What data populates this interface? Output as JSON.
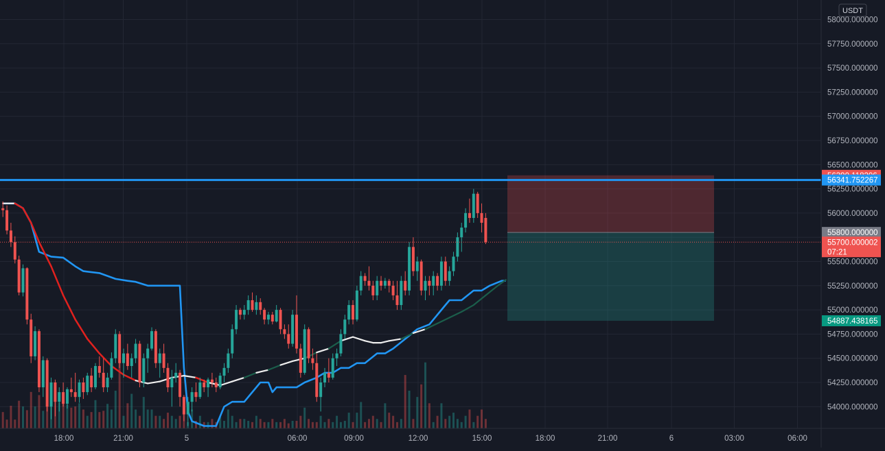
{
  "currency_label": "USDT",
  "colors": {
    "background": "#161a25",
    "grid": "#232734",
    "up": "#26a69a",
    "down": "#ef5350",
    "channel": "#2196f3",
    "ma_down": "#e0211e",
    "ma_neutral": "#eeeeee",
    "ma_up": "#1b5e4b",
    "axis_text": "#b2b5be",
    "stop_zone": "rgba(239,83,80,0.26)",
    "target_zone": "rgba(38,166,154,0.26)",
    "entry_marker": "#787b86"
  },
  "price_axis": {
    "ticks": [
      "58000.000000",
      "57750.000000",
      "57500.000000",
      "57250.000000",
      "57000.000000",
      "56750.000000",
      "56500.000000",
      "56250.000000",
      "56000.000000",
      "55750.000000",
      "55500.000000",
      "55250.000000",
      "55000.000000",
      "54750.000000",
      "54500.000000",
      "54250.000000",
      "54000.000000"
    ],
    "labels": [
      {
        "text": "56390.118206",
        "value": 56390.118206,
        "color": "#ef5350"
      },
      {
        "text": "56341.752267",
        "value": 56341.752267,
        "color": "#2196f3"
      },
      {
        "text": "55800.000000",
        "value": 55800.0,
        "color": "#787b86"
      },
      {
        "text": "55700.000002",
        "value": 55700.000002,
        "color": "#ef5350"
      },
      {
        "text": "54887.438165",
        "value": 54887.438165,
        "color": "#089981"
      }
    ],
    "countdown": "07:21"
  },
  "time_axis": {
    "ticks": [
      "18:00",
      "21:00",
      "5",
      "06:00",
      "09:00",
      "12:00",
      "15:00",
      "18:00",
      "21:00",
      "6",
      "03:00",
      "06:00"
    ]
  },
  "chart_data": {
    "type": "candlestick",
    "interval_minutes": 15,
    "first_bar_time": "4 15:30",
    "ylim": [
      53800,
      58100
    ],
    "horizontal_lines": [
      56341.752267
    ],
    "last_price": 55700.000002,
    "position": {
      "type": "short",
      "entry": 55800.0,
      "stop": 56390.118206,
      "target": 54887.438165
    },
    "candles": [
      {
        "o": 56050,
        "h": 56120,
        "l": 55960,
        "c": 56030
      },
      {
        "o": 56030,
        "h": 56080,
        "l": 55780,
        "c": 55820
      },
      {
        "o": 55820,
        "h": 55900,
        "l": 55650,
        "c": 55700
      },
      {
        "o": 55700,
        "h": 55760,
        "l": 55480,
        "c": 55520
      },
      {
        "o": 55520,
        "h": 55560,
        "l": 55150,
        "c": 55180
      },
      {
        "o": 55180,
        "h": 55470,
        "l": 55140,
        "c": 55430
      },
      {
        "o": 55430,
        "h": 55440,
        "l": 54850,
        "c": 54900
      },
      {
        "o": 54900,
        "h": 54960,
        "l": 54450,
        "c": 54520
      },
      {
        "o": 54520,
        "h": 54830,
        "l": 54480,
        "c": 54780
      },
      {
        "o": 54780,
        "h": 54800,
        "l": 54150,
        "c": 54200
      },
      {
        "o": 54200,
        "h": 54520,
        "l": 54100,
        "c": 54480
      },
      {
        "o": 54480,
        "h": 54500,
        "l": 53950,
        "c": 54000
      },
      {
        "o": 54000,
        "h": 54300,
        "l": 53870,
        "c": 54250
      },
      {
        "o": 54250,
        "h": 54280,
        "l": 53900,
        "c": 54050
      },
      {
        "o": 54050,
        "h": 54200,
        "l": 53950,
        "c": 54150
      },
      {
        "o": 54150,
        "h": 54250,
        "l": 54000,
        "c": 54030
      },
      {
        "o": 54030,
        "h": 54200,
        "l": 53980,
        "c": 54180
      },
      {
        "o": 54180,
        "h": 54300,
        "l": 54100,
        "c": 54150
      },
      {
        "o": 54150,
        "h": 54350,
        "l": 54050,
        "c": 54100
      },
      {
        "o": 54100,
        "h": 54280,
        "l": 54040,
        "c": 54250
      },
      {
        "o": 54250,
        "h": 54300,
        "l": 54080,
        "c": 54150
      },
      {
        "o": 54150,
        "h": 54350,
        "l": 54120,
        "c": 54320
      },
      {
        "o": 54320,
        "h": 54400,
        "l": 54150,
        "c": 54200
      },
      {
        "o": 54200,
        "h": 54450,
        "l": 54180,
        "c": 54420
      },
      {
        "o": 54420,
        "h": 54520,
        "l": 54300,
        "c": 54350
      },
      {
        "o": 54350,
        "h": 54500,
        "l": 54150,
        "c": 54200
      },
      {
        "o": 54200,
        "h": 54350,
        "l": 54150,
        "c": 54300
      },
      {
        "o": 54300,
        "h": 54560,
        "l": 54280,
        "c": 54500
      },
      {
        "o": 54500,
        "h": 54800,
        "l": 54450,
        "c": 54750
      },
      {
        "o": 54750,
        "h": 54780,
        "l": 54400,
        "c": 54450
      },
      {
        "o": 54450,
        "h": 54600,
        "l": 54300,
        "c": 54550
      },
      {
        "o": 54550,
        "h": 54650,
        "l": 54380,
        "c": 54420
      },
      {
        "o": 54420,
        "h": 54550,
        "l": 54300,
        "c": 54500
      },
      {
        "o": 54500,
        "h": 54700,
        "l": 54450,
        "c": 54650
      },
      {
        "o": 54650,
        "h": 54680,
        "l": 54200,
        "c": 54250
      },
      {
        "o": 54250,
        "h": 54550,
        "l": 54200,
        "c": 54500
      },
      {
        "o": 54500,
        "h": 54650,
        "l": 54350,
        "c": 54600
      },
      {
        "o": 54600,
        "h": 54820,
        "l": 54580,
        "c": 54780
      },
      {
        "o": 54780,
        "h": 54800,
        "l": 54400,
        "c": 54450
      },
      {
        "o": 54450,
        "h": 54600,
        "l": 54300,
        "c": 54550
      },
      {
        "o": 54550,
        "h": 54650,
        "l": 54350,
        "c": 54400
      },
      {
        "o": 54400,
        "h": 54450,
        "l": 54150,
        "c": 54200
      },
      {
        "o": 54200,
        "h": 54380,
        "l": 54000,
        "c": 54300
      },
      {
        "o": 54300,
        "h": 54450,
        "l": 54250,
        "c": 54350
      },
      {
        "o": 54350,
        "h": 54380,
        "l": 54000,
        "c": 54100
      },
      {
        "o": 54100,
        "h": 54120,
        "l": 53850,
        "c": 53920
      },
      {
        "o": 53920,
        "h": 54100,
        "l": 53800,
        "c": 54050
      },
      {
        "o": 54050,
        "h": 54200,
        "l": 53950,
        "c": 54150
      },
      {
        "o": 54150,
        "h": 54250,
        "l": 54050,
        "c": 54100
      },
      {
        "o": 54100,
        "h": 54300,
        "l": 54080,
        "c": 54250
      },
      {
        "o": 54250,
        "h": 54280,
        "l": 54150,
        "c": 54200
      },
      {
        "o": 54200,
        "h": 54300,
        "l": 54100,
        "c": 54280
      },
      {
        "o": 54280,
        "h": 54350,
        "l": 54200,
        "c": 54250
      },
      {
        "o": 54250,
        "h": 54300,
        "l": 54150,
        "c": 54200
      },
      {
        "o": 54200,
        "h": 54350,
        "l": 54180,
        "c": 54320
      },
      {
        "o": 54320,
        "h": 54450,
        "l": 54250,
        "c": 54400
      },
      {
        "o": 54400,
        "h": 54600,
        "l": 54350,
        "c": 54550
      },
      {
        "o": 54550,
        "h": 54850,
        "l": 54500,
        "c": 54800
      },
      {
        "o": 54800,
        "h": 55050,
        "l": 54750,
        "c": 55000
      },
      {
        "o": 55000,
        "h": 55020,
        "l": 54900,
        "c": 54950
      },
      {
        "o": 54950,
        "h": 55050,
        "l": 54900,
        "c": 55000
      },
      {
        "o": 55000,
        "h": 55150,
        "l": 54950,
        "c": 55100
      },
      {
        "o": 55100,
        "h": 55180,
        "l": 54980,
        "c": 55000
      },
      {
        "o": 55000,
        "h": 55150,
        "l": 54950,
        "c": 55080
      },
      {
        "o": 55080,
        "h": 55120,
        "l": 54950,
        "c": 55000
      },
      {
        "o": 55000,
        "h": 55020,
        "l": 54850,
        "c": 54900
      },
      {
        "o": 54900,
        "h": 54980,
        "l": 54850,
        "c": 54950
      },
      {
        "o": 54950,
        "h": 54980,
        "l": 54850,
        "c": 54880
      },
      {
        "o": 54880,
        "h": 55050,
        "l": 54870,
        "c": 55000
      },
      {
        "o": 55000,
        "h": 55020,
        "l": 54750,
        "c": 54800
      },
      {
        "o": 54800,
        "h": 54850,
        "l": 54700,
        "c": 54750
      },
      {
        "o": 54750,
        "h": 54850,
        "l": 54600,
        "c": 54650
      },
      {
        "o": 54650,
        "h": 55000,
        "l": 54620,
        "c": 54950
      },
      {
        "o": 54950,
        "h": 55150,
        "l": 54550,
        "c": 54600
      },
      {
        "o": 54600,
        "h": 54650,
        "l": 54300,
        "c": 54350
      },
      {
        "o": 54350,
        "h": 54850,
        "l": 54330,
        "c": 54800
      },
      {
        "o": 54800,
        "h": 54820,
        "l": 54450,
        "c": 54500
      },
      {
        "o": 54500,
        "h": 54600,
        "l": 54380,
        "c": 54450
      },
      {
        "o": 54450,
        "h": 54550,
        "l": 54050,
        "c": 54100
      },
      {
        "o": 54100,
        "h": 54300,
        "l": 53950,
        "c": 54250
      },
      {
        "o": 54250,
        "h": 54400,
        "l": 54200,
        "c": 54350
      },
      {
        "o": 54350,
        "h": 54500,
        "l": 54250,
        "c": 54300
      },
      {
        "o": 54300,
        "h": 54550,
        "l": 54280,
        "c": 54500
      },
      {
        "o": 54500,
        "h": 54600,
        "l": 54420,
        "c": 54550
      },
      {
        "o": 54550,
        "h": 54800,
        "l": 54520,
        "c": 54750
      },
      {
        "o": 54750,
        "h": 54950,
        "l": 54700,
        "c": 54900
      },
      {
        "o": 54900,
        "h": 55100,
        "l": 54850,
        "c": 55050
      },
      {
        "o": 55050,
        "h": 55100,
        "l": 54850,
        "c": 54900
      },
      {
        "o": 54900,
        "h": 55250,
        "l": 54880,
        "c": 55200
      },
      {
        "o": 55200,
        "h": 55400,
        "l": 55150,
        "c": 55350
      },
      {
        "o": 55350,
        "h": 55380,
        "l": 55250,
        "c": 55300
      },
      {
        "o": 55300,
        "h": 55450,
        "l": 55200,
        "c": 55250
      },
      {
        "o": 55250,
        "h": 55300,
        "l": 55100,
        "c": 55150
      },
      {
        "o": 55150,
        "h": 55350,
        "l": 55100,
        "c": 55300
      },
      {
        "o": 55300,
        "h": 55350,
        "l": 55200,
        "c": 55250
      },
      {
        "o": 55250,
        "h": 55330,
        "l": 55220,
        "c": 55300
      },
      {
        "o": 55300,
        "h": 55320,
        "l": 55180,
        "c": 55250
      },
      {
        "o": 55250,
        "h": 55300,
        "l": 55100,
        "c": 55150
      },
      {
        "o": 55150,
        "h": 55300,
        "l": 55000,
        "c": 55050
      },
      {
        "o": 55050,
        "h": 55350,
        "l": 55000,
        "c": 55300
      },
      {
        "o": 55300,
        "h": 55400,
        "l": 55150,
        "c": 55200
      },
      {
        "o": 55200,
        "h": 55700,
        "l": 55150,
        "c": 55650
      },
      {
        "o": 55650,
        "h": 55750,
        "l": 55350,
        "c": 55400
      },
      {
        "o": 55400,
        "h": 55550,
        "l": 55300,
        "c": 55500
      },
      {
        "o": 55500,
        "h": 55520,
        "l": 55150,
        "c": 55200
      },
      {
        "o": 55200,
        "h": 55350,
        "l": 55100,
        "c": 55300
      },
      {
        "o": 55300,
        "h": 55350,
        "l": 55150,
        "c": 55250
      },
      {
        "o": 55250,
        "h": 55400,
        "l": 55150,
        "c": 55350
      },
      {
        "o": 55350,
        "h": 55380,
        "l": 55200,
        "c": 55250
      },
      {
        "o": 55250,
        "h": 55550,
        "l": 55200,
        "c": 55500
      },
      {
        "o": 55500,
        "h": 55550,
        "l": 55250,
        "c": 55300
      },
      {
        "o": 55300,
        "h": 55450,
        "l": 55250,
        "c": 55400
      },
      {
        "o": 55400,
        "h": 55600,
        "l": 55350,
        "c": 55550
      },
      {
        "o": 55550,
        "h": 55800,
        "l": 55500,
        "c": 55750
      },
      {
        "o": 55750,
        "h": 55900,
        "l": 55600,
        "c": 55850
      },
      {
        "o": 55850,
        "h": 56050,
        "l": 55800,
        "c": 56000
      },
      {
        "o": 56000,
        "h": 56150,
        "l": 55900,
        "c": 55950
      },
      {
        "o": 55950,
        "h": 56250,
        "l": 55900,
        "c": 56200
      },
      {
        "o": 56200,
        "h": 56220,
        "l": 55950,
        "c": 56000
      },
      {
        "o": 56000,
        "h": 56100,
        "l": 55800,
        "c": 55900
      },
      {
        "o": 55950,
        "h": 56000,
        "l": 55680,
        "c": 55700
      }
    ],
    "volumes": [
      260,
      140,
      360,
      140,
      440,
      350,
      290,
      580,
      350,
      530,
      280,
      450,
      700,
      600,
      410,
      500,
      380,
      330,
      350,
      400,
      300,
      200,
      260,
      450,
      260,
      280,
      390,
      300,
      600,
      1100,
      200,
      400,
      550,
      300,
      200,
      500,
      300,
      300,
      200,
      200,
      150,
      250,
      200,
      150,
      200,
      250,
      100,
      300,
      120,
      200,
      100,
      100,
      150,
      100,
      200,
      120,
      300,
      200,
      100,
      150,
      150,
      120,
      100,
      200,
      150,
      100,
      100,
      150,
      100,
      100,
      150,
      80,
      120,
      120,
      200,
      330,
      150,
      100,
      100,
      200,
      100,
      150,
      100,
      200,
      100,
      120,
      250,
      100,
      250,
      420,
      100,
      150,
      200,
      150,
      100,
      400,
      250,
      200,
      100,
      150,
      850,
      600,
      150,
      500,
      700,
      1050,
      400,
      100,
      200,
      400,
      150,
      200,
      250,
      150,
      100,
      200,
      300,
      100,
      200,
      300,
      150
    ],
    "channel_line": [
      [
        0,
        56100
      ],
      [
        3,
        56100
      ],
      [
        5,
        56050
      ],
      [
        7,
        55900
      ],
      [
        9,
        55600
      ],
      [
        12,
        55550
      ],
      [
        15,
        55540
      ],
      [
        18,
        55450
      ],
      [
        20,
        55400
      ],
      [
        24,
        55380
      ],
      [
        28,
        55320
      ],
      [
        31,
        55300
      ],
      [
        33,
        55290
      ],
      [
        36,
        55250
      ],
      [
        38,
        55250
      ],
      [
        43,
        55250
      ],
      [
        44,
        55250
      ],
      [
        45,
        54400
      ],
      [
        46,
        53950
      ],
      [
        47,
        53850
      ],
      [
        50,
        53800
      ],
      [
        53,
        53800
      ],
      [
        55,
        54000
      ],
      [
        57,
        54050
      ],
      [
        60,
        54050
      ],
      [
        64,
        54250
      ],
      [
        66,
        54250
      ],
      [
        67,
        54150
      ],
      [
        68,
        54200
      ],
      [
        73,
        54200
      ],
      [
        75,
        54250
      ],
      [
        78,
        54300
      ],
      [
        80,
        54350
      ],
      [
        82,
        54350
      ],
      [
        84,
        54400
      ],
      [
        86,
        54400
      ],
      [
        88,
        54450
      ],
      [
        90,
        54450
      ],
      [
        93,
        54550
      ],
      [
        95,
        54550
      ],
      [
        97,
        54600
      ],
      [
        100,
        54700
      ],
      [
        103,
        54800
      ],
      [
        106,
        54850
      ],
      [
        110,
        55050
      ],
      [
        111,
        55100
      ],
      [
        114,
        55100
      ],
      [
        117,
        55200
      ],
      [
        119,
        55200
      ],
      [
        121,
        55250
      ],
      [
        124,
        55300
      ],
      [
        125,
        55300
      ]
    ],
    "ma_line": [
      [
        0,
        56100
      ],
      [
        3,
        56100
      ],
      [
        5,
        56050
      ],
      [
        7,
        55900
      ],
      [
        9,
        55700
      ],
      [
        12,
        55450
      ],
      [
        15,
        55150
      ],
      [
        18,
        54900
      ],
      [
        21,
        54700
      ],
      [
        24,
        54550
      ],
      [
        27,
        54420
      ],
      [
        30,
        54330
      ],
      [
        33,
        54270
      ],
      [
        36,
        54240
      ],
      [
        39,
        54260
      ],
      [
        42,
        54300
      ],
      [
        45,
        54320
      ],
      [
        48,
        54300
      ],
      [
        51,
        54250
      ],
      [
        54,
        54220
      ],
      [
        57,
        54260
      ],
      [
        60,
        54300
      ],
      [
        63,
        54350
      ],
      [
        66,
        54380
      ],
      [
        69,
        54430
      ],
      [
        72,
        54470
      ],
      [
        75,
        54500
      ],
      [
        78,
        54560
      ],
      [
        81,
        54600
      ],
      [
        84,
        54680
      ],
      [
        87,
        54720
      ],
      [
        90,
        54680
      ],
      [
        92,
        54660
      ],
      [
        94,
        54660
      ],
      [
        96,
        54680
      ],
      [
        99,
        54700
      ],
      [
        102,
        54760
      ],
      [
        105,
        54800
      ],
      [
        108,
        54860
      ],
      [
        111,
        54920
      ],
      [
        114,
        54980
      ],
      [
        117,
        55050
      ],
      [
        120,
        55150
      ],
      [
        123,
        55250
      ],
      [
        125,
        55310
      ]
    ]
  }
}
